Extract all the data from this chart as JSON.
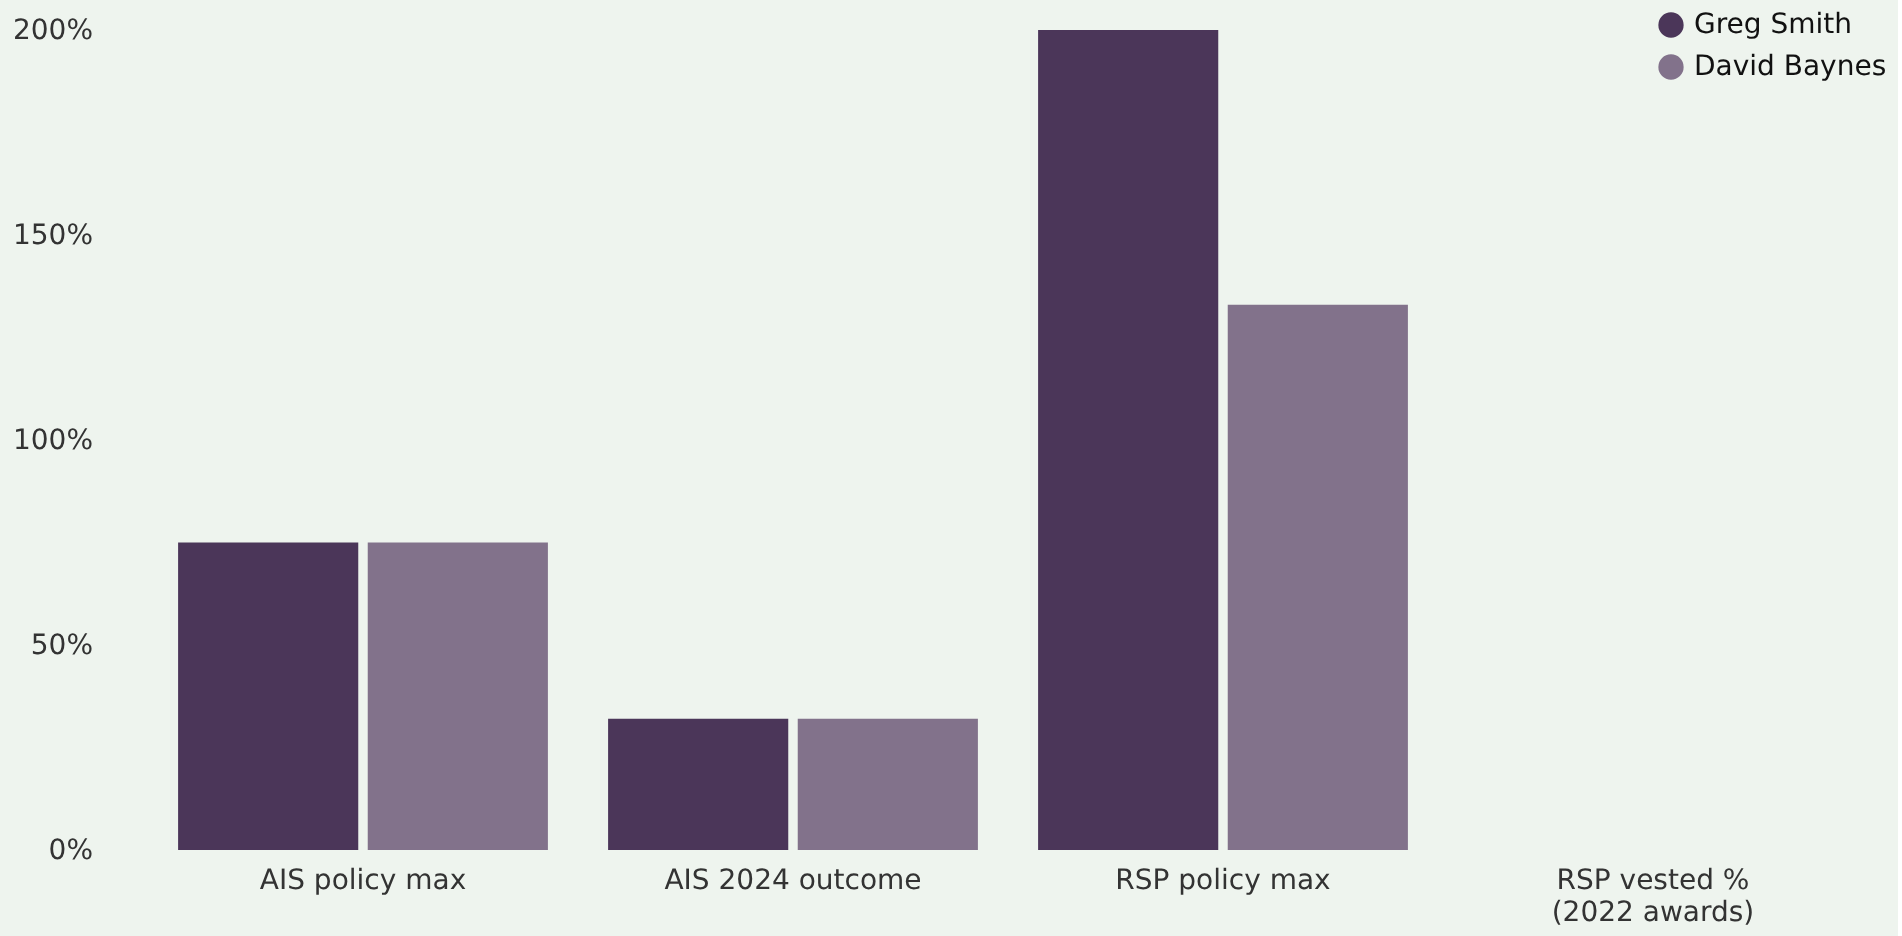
{
  "chart_data": {
    "type": "bar",
    "categories": [
      "AIS policy max",
      "AIS 2024 outcome",
      "RSP policy max",
      "RSP vested %\n(2022 awards)"
    ],
    "series": [
      {
        "name": "Greg Smith",
        "color": "#4b3659",
        "values": [
          75,
          32,
          200,
          null
        ]
      },
      {
        "name": "David Baynes",
        "color": "#82728b",
        "values": [
          75,
          32,
          133,
          null
        ]
      }
    ],
    "ylim": [
      0,
      200
    ],
    "yticks": [
      {
        "value": 0,
        "label": "0%"
      },
      {
        "value": 50,
        "label": "50%"
      },
      {
        "value": 100,
        "label": "100%"
      },
      {
        "value": 150,
        "label": "150%"
      },
      {
        "value": 200,
        "label": "200%"
      }
    ],
    "grid": false,
    "legend": "top right"
  }
}
